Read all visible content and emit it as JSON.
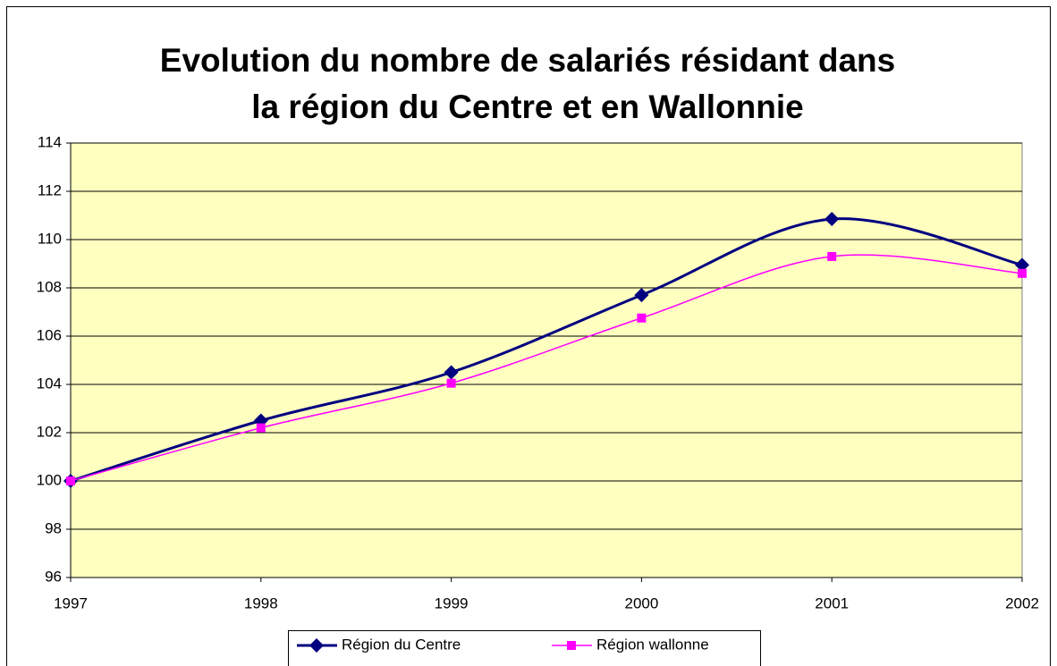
{
  "chart_data": {
    "type": "line",
    "title": [
      "Evolution du nombre de salariés résidant dans",
      "la région du Centre et en Wallonnie"
    ],
    "x": [
      1997,
      1998,
      1999,
      2000,
      2001,
      2002
    ],
    "xlim": [
      1997,
      2002
    ],
    "xticks": [
      1997,
      1998,
      1999,
      2000,
      2001,
      2002
    ],
    "ylim": [
      96,
      114
    ],
    "yticks": [
      96,
      98,
      100,
      102,
      104,
      106,
      108,
      110,
      112,
      114
    ],
    "grid": true,
    "smooth": true,
    "legend": "bottom",
    "series": [
      {
        "name": "Région du Centre",
        "color": "#000080",
        "marker": "diamond",
        "values": [
          100,
          102.5,
          104.5,
          107.7,
          110.85,
          108.95
        ]
      },
      {
        "name": "Région wallonne",
        "color": "#ff00ff",
        "marker": "square",
        "values": [
          100,
          102.2,
          104.05,
          106.75,
          109.3,
          108.6
        ]
      }
    ]
  }
}
